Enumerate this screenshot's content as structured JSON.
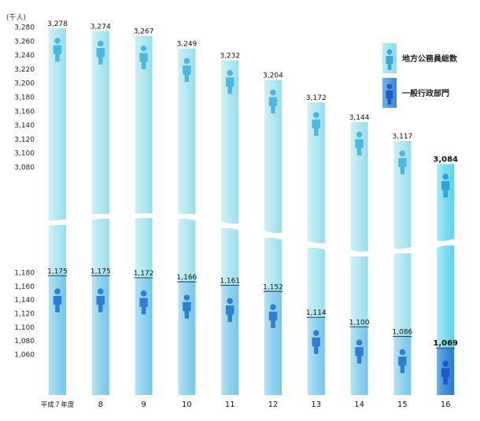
{
  "chart_data": {
    "type": "bar",
    "unit_label": "(千人)",
    "categories": [
      "平成７年度",
      "8",
      "9",
      "10",
      "11",
      "12",
      "13",
      "14",
      "15",
      "16"
    ],
    "series": [
      {
        "name": "地方公務員総数",
        "values": [
          3278,
          3274,
          3267,
          3249,
          3232,
          3204,
          3172,
          3144,
          3117,
          3084
        ],
        "labels": [
          "3,278",
          "3,274",
          "3,267",
          "3,249",
          "3,232",
          "3,204",
          "3,172",
          "3,144",
          "3,117",
          "3,084"
        ]
      },
      {
        "name": "一般行政部門",
        "values": [
          1175,
          1175,
          1172,
          1166,
          1161,
          1152,
          1114,
          1100,
          1086,
          1069
        ],
        "labels": [
          "1,175",
          "1,175",
          "1,172",
          "1,166",
          "1,161",
          "1,152",
          "1,114",
          "1,100",
          "1,086",
          "1,069"
        ]
      }
    ],
    "upper_axis": {
      "range": [
        3080,
        3280
      ],
      "ticks": [
        "3,280",
        "3,260",
        "3,240",
        "3,220",
        "3,200",
        "3,180",
        "3,160",
        "3,140",
        "3,120",
        "3,100",
        "3,080"
      ]
    },
    "lower_axis": {
      "range": [
        1060,
        1180
      ],
      "ticks": [
        "1,180",
        "1,160",
        "1,140",
        "1,120",
        "1,100",
        "1,080",
        "1,060"
      ]
    },
    "broken_axis": true,
    "highlight_last": true,
    "legend_position": "top-right",
    "colors": {
      "total": "#a9e4ef",
      "total_highlight": "#7fdcef",
      "general": "#8fd3ef",
      "general_highlight": "#3f8fd9",
      "icon_total": "#4bb8e0",
      "icon_general": "#2f7fd0",
      "icon_general_highlight": "#1f58c8"
    }
  }
}
